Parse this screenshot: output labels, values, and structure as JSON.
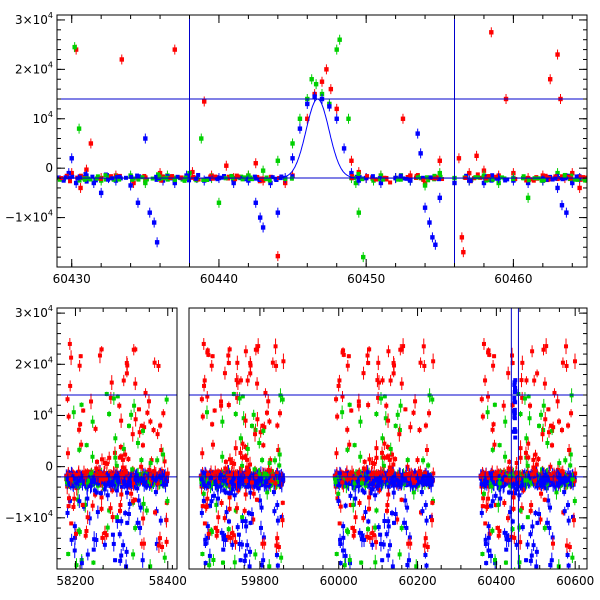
{
  "chart_data": [
    {
      "type": "scatter",
      "panel": "top",
      "title": "",
      "xlabel": "",
      "ylabel": "",
      "xlim": [
        60429,
        60465
      ],
      "ylim": [
        -20000,
        31000
      ],
      "x_ticks": [
        {
          "value": 60430,
          "label": "60430"
        },
        {
          "value": 60440,
          "label": "60440"
        },
        {
          "value": 60450,
          "label": "60450"
        },
        {
          "value": 60460,
          "label": "60460"
        }
      ],
      "y_ticks": [
        {
          "value": -10000,
          "mant": "−1×10",
          "exp": "4"
        },
        {
          "value": 0,
          "mant": "0",
          "exp": ""
        },
        {
          "value": 10000,
          "mant": "10",
          "exp": "4"
        },
        {
          "value": 20000,
          "mant": "2×10",
          "exp": "4"
        },
        {
          "value": 30000,
          "mant": "3×10",
          "exp": "4"
        }
      ],
      "grid": false,
      "vlines": [
        60438,
        60456
      ],
      "hlines": [
        14000,
        -2000
      ],
      "model_curve": {
        "baseline": -2000,
        "peak": 14000,
        "t0": 60446.7,
        "width": 1.1,
        "color": "#0000ff"
      },
      "series": [
        {
          "color": "#ff0000",
          "points": [
            [
              60430.0,
              -1000
            ],
            [
              60430.3,
              24000
            ],
            [
              60430.6,
              -4000
            ],
            [
              60431.0,
              -300
            ],
            [
              60431.3,
              5000
            ],
            [
              60432.0,
              -2000
            ],
            [
              60433.0,
              -1500
            ],
            [
              60433.4,
              22000
            ],
            [
              60434.2,
              -3000
            ],
            [
              60435.0,
              -2500
            ],
            [
              60436.0,
              -1000
            ],
            [
              60437.0,
              24000
            ],
            [
              60438.2,
              -800
            ],
            [
              60439.0,
              13500
            ],
            [
              60439.5,
              -1500
            ],
            [
              60440.5,
              500
            ],
            [
              60441.0,
              -2000
            ],
            [
              60442.0,
              -1500
            ],
            [
              60442.5,
              1000
            ],
            [
              60443.0,
              -2500
            ],
            [
              60444.0,
              -17800
            ],
            [
              60444.5,
              -3000
            ],
            [
              60445.0,
              -1500
            ],
            [
              60446.0,
              10000
            ],
            [
              60446.5,
              15000
            ],
            [
              60447.0,
              17500
            ],
            [
              60447.3,
              20000
            ],
            [
              60447.6,
              16000
            ],
            [
              60448.0,
              12000
            ],
            [
              60449.0,
              1500
            ],
            [
              60449.5,
              -800
            ],
            [
              60450.0,
              -2000
            ],
            [
              60451.0,
              -1500
            ],
            [
              60452.0,
              -2000
            ],
            [
              60452.5,
              10000
            ],
            [
              60453.0,
              -1500
            ],
            [
              60454.0,
              -3000
            ],
            [
              60455.0,
              1500
            ],
            [
              60456.3,
              2000
            ],
            [
              60456.5,
              -14000
            ],
            [
              60456.6,
              -17000
            ],
            [
              60457.0,
              -1000
            ],
            [
              60457.5,
              2500
            ],
            [
              60458.0,
              -500
            ],
            [
              60458.5,
              27500
            ],
            [
              60459.0,
              -1500
            ],
            [
              60459.5,
              14000
            ],
            [
              60460.0,
              -1000
            ],
            [
              60461.0,
              -2000
            ],
            [
              60462.0,
              -1500
            ],
            [
              60462.5,
              18000
            ],
            [
              60463.0,
              23000
            ],
            [
              60463.2,
              14000
            ],
            [
              60463.5,
              -2000
            ],
            [
              60464.0,
              -1000
            ],
            [
              60464.5,
              -4000
            ],
            [
              60465.0,
              -2500
            ]
          ]
        },
        {
          "color": "#00d000",
          "points": [
            [
              60430.2,
              24500
            ],
            [
              60430.5,
              8000
            ],
            [
              60431.0,
              -2000
            ],
            [
              60432.0,
              -2500
            ],
            [
              60433.0,
              -2000
            ],
            [
              60434.0,
              -1500
            ],
            [
              60435.0,
              -3000
            ],
            [
              60436.5,
              -1500
            ],
            [
              60437.0,
              -2500
            ],
            [
              60438.0,
              -1000
            ],
            [
              60438.8,
              6000
            ],
            [
              60439.5,
              -2000
            ],
            [
              60440.0,
              -7000
            ],
            [
              60441.0,
              -2500
            ],
            [
              60442.0,
              -1500
            ],
            [
              60443.0,
              -500
            ],
            [
              60444.0,
              1500
            ],
            [
              60445.0,
              5000
            ],
            [
              60445.5,
              10000
            ],
            [
              60446.0,
              14000
            ],
            [
              60446.3,
              18000
            ],
            [
              60446.6,
              17000
            ],
            [
              60447.0,
              15000
            ],
            [
              60447.5,
              13000
            ],
            [
              60448.0,
              24000
            ],
            [
              60448.2,
              26000
            ],
            [
              60448.8,
              10000
            ],
            [
              60449.0,
              -2000
            ],
            [
              60449.3,
              -3000
            ],
            [
              60449.5,
              -9000
            ],
            [
              60449.8,
              -18000
            ],
            [
              60450.5,
              -2500
            ],
            [
              60451.0,
              -1500
            ],
            [
              60452.0,
              -2000
            ],
            [
              60453.0,
              -2500
            ],
            [
              60454.0,
              -3500
            ],
            [
              60455.0,
              -1000
            ],
            [
              60456.0,
              -2000
            ],
            [
              60457.0,
              -2500
            ],
            [
              60458.0,
              -1500
            ],
            [
              60459.0,
              -3000
            ],
            [
              60460.0,
              -2000
            ],
            [
              60461.0,
              -6000
            ],
            [
              60462.0,
              -2500
            ],
            [
              60463.0,
              -1000
            ],
            [
              60464.0,
              -2500
            ]
          ]
        },
        {
          "color": "#0000ff",
          "points": [
            [
              60429.8,
              -1000
            ],
            [
              60430.0,
              2000
            ],
            [
              60430.3,
              -3000
            ],
            [
              60431.0,
              -1500
            ],
            [
              60431.5,
              -3000
            ],
            [
              60432.0,
              -5000
            ],
            [
              60432.5,
              -2000
            ],
            [
              60433.0,
              -2500
            ],
            [
              60434.0,
              -3500
            ],
            [
              60434.5,
              -7000
            ],
            [
              60435.0,
              6000
            ],
            [
              60435.3,
              -9000
            ],
            [
              60435.6,
              -11000
            ],
            [
              60435.8,
              -15000
            ],
            [
              60436.2,
              -2500
            ],
            [
              60437.0,
              -3000
            ],
            [
              60437.8,
              -1500
            ],
            [
              60438.5,
              -2000
            ],
            [
              60439.0,
              -2500
            ],
            [
              60440.0,
              -2000
            ],
            [
              60441.0,
              -3000
            ],
            [
              60442.0,
              -2500
            ],
            [
              60442.5,
              -7000
            ],
            [
              60442.8,
              -10000
            ],
            [
              60443.0,
              -12000
            ],
            [
              60443.5,
              -3000
            ],
            [
              60444.0,
              -9000
            ],
            [
              60444.5,
              -2000
            ],
            [
              60445.0,
              2000
            ],
            [
              60445.5,
              8000
            ],
            [
              60446.0,
              13000
            ],
            [
              60446.5,
              14500
            ],
            [
              60447.0,
              14000
            ],
            [
              60447.5,
              12500
            ],
            [
              60448.0,
              10000
            ],
            [
              60448.5,
              4000
            ],
            [
              60449.0,
              -1000
            ],
            [
              60449.5,
              -2500
            ],
            [
              60450.0,
              -2000
            ],
            [
              60451.0,
              -3000
            ],
            [
              60452.0,
              -2000
            ],
            [
              60453.0,
              -2500
            ],
            [
              60453.5,
              7000
            ],
            [
              60453.7,
              3000
            ],
            [
              60454.0,
              -8000
            ],
            [
              60454.3,
              -11000
            ],
            [
              60454.5,
              -14000
            ],
            [
              60454.7,
              -15500
            ],
            [
              60455.0,
              -6000
            ],
            [
              60456.0,
              -3000
            ],
            [
              60457.0,
              -2500
            ],
            [
              60458.0,
              -3000
            ],
            [
              60459.0,
              -2000
            ],
            [
              60460.0,
              -2500
            ],
            [
              60461.0,
              -3000
            ],
            [
              60462.0,
              -2500
            ],
            [
              60463.0,
              -4000
            ],
            [
              60463.3,
              -7500
            ],
            [
              60463.6,
              -9000
            ],
            [
              60464.0,
              -3000
            ],
            [
              60464.5,
              -2000
            ]
          ]
        }
      ]
    },
    {
      "type": "scatter",
      "panel": "bottom",
      "title": "",
      "xlabel": "",
      "ylabel": "",
      "ylim": [
        -20000,
        31000
      ],
      "x_ticks": [
        {
          "value": 58200,
          "label": "58200"
        },
        {
          "value": 58400,
          "label": "58400"
        },
        {
          "value": 59800,
          "label": "59800"
        },
        {
          "value": 60000,
          "label": "60000"
        },
        {
          "value": 60200,
          "label": "60200"
        },
        {
          "value": 60400,
          "label": "60400"
        },
        {
          "value": 60600,
          "label": "60600"
        }
      ],
      "y_ticks": [
        {
          "value": -10000,
          "mant": "−1×10",
          "exp": "4"
        },
        {
          "value": 0,
          "mant": "0",
          "exp": ""
        },
        {
          "value": 10000,
          "mant": "10",
          "exp": "4"
        },
        {
          "value": 20000,
          "mant": "2×10",
          "exp": "4"
        },
        {
          "value": 30000,
          "mant": "3×10",
          "exp": "4"
        }
      ],
      "grid": false,
      "broken_axis": true,
      "segments": [
        {
          "xmin": 58160,
          "xmax": 58420
        },
        {
          "xmin": 59620,
          "xmax": 60630
        }
      ],
      "hlines": [
        14000,
        -2000
      ],
      "vlines": [
        60438,
        60456
      ],
      "seasons": [
        {
          "xmin": 58180,
          "xmax": 58400
        },
        {
          "xmin": 59650,
          "xmax": 59860
        },
        {
          "xmin": 59990,
          "xmax": 60240
        },
        {
          "xmin": 60360,
          "xmax": 60600
        }
      ]
    }
  ]
}
